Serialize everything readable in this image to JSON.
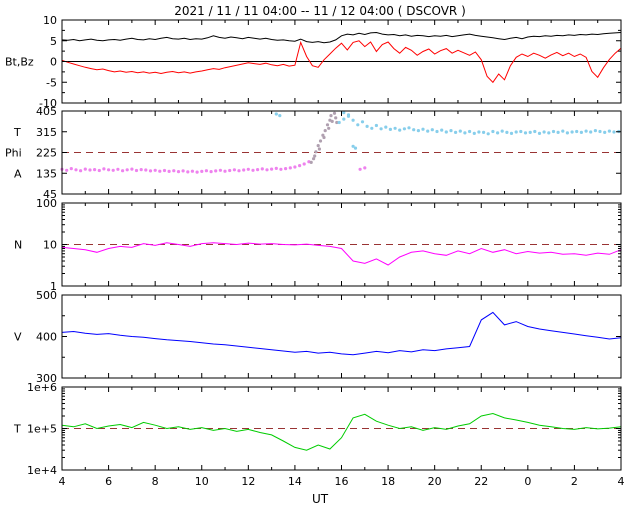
{
  "chart_data": {
    "type": "line",
    "title": "2021 / 11 / 11  04:00 -- 11 / 12  04:00 ( DSCOVR )",
    "xlabel": "UT",
    "x_range": [
      4,
      28
    ],
    "x_ticks": [
      4,
      6,
      8,
      10,
      12,
      14,
      16,
      18,
      20,
      22,
      24,
      26,
      28
    ],
    "x_tick_labels": [
      "4",
      "6",
      "8",
      "10",
      "12",
      "14",
      "16",
      "18",
      "20",
      "22",
      "0",
      "2",
      "4"
    ],
    "grid": false,
    "legend": "none",
    "refline_color": "#993333",
    "panels": [
      {
        "id": "bt-bz",
        "left_labels": [
          {
            "text": "Bt,Bz",
            "v": 0
          }
        ],
        "yscale": "linear",
        "ylim": [
          -10,
          10
        ],
        "yticks": [
          {
            "v": 10,
            "label": "10"
          },
          {
            "v": 5,
            "label": "5"
          },
          {
            "v": 0,
            "label": "0"
          },
          {
            "v": -5,
            "label": "-5"
          },
          {
            "v": -10,
            "label": "-10"
          }
        ],
        "yminor": [
          -7.5,
          -2.5,
          2.5,
          7.5
        ],
        "zero_line": true,
        "series": [
          {
            "name": "Bt",
            "type": "line",
            "color": "#000000",
            "y": [
              5.2,
              5.1,
              5.3,
              5.0,
              5.2,
              5.4,
              5.1,
              5.0,
              5.2,
              5.3,
              5.1,
              5.4,
              5.6,
              5.3,
              5.2,
              5.5,
              5.3,
              5.6,
              5.8,
              5.5,
              5.4,
              5.6,
              5.3,
              5.5,
              5.4,
              5.7,
              6.2,
              5.8,
              5.6,
              5.9,
              5.7,
              5.5,
              5.8,
              5.6,
              5.4,
              5.6,
              5.3,
              5.1,
              5.2,
              5.0,
              4.9,
              5.4,
              4.8,
              4.6,
              4.8,
              4.5,
              4.7,
              5.2,
              6.2,
              6.6,
              6.4,
              6.8,
              6.5,
              6.9,
              7.0,
              6.6,
              6.4,
              6.5,
              6.2,
              6.4,
              6.1,
              6.3,
              6.2,
              6.0,
              6.2,
              6.1,
              6.3,
              6.0,
              6.2,
              6.4,
              6.6,
              6.3,
              6.1,
              5.9,
              5.7,
              5.5,
              5.3,
              5.6,
              5.8,
              5.5,
              5.9,
              6.1,
              6.0,
              6.2,
              6.1,
              6.3,
              6.2,
              6.4,
              6.3,
              6.5,
              6.4,
              6.6,
              6.5,
              6.7,
              6.8,
              6.9,
              7.0
            ]
          },
          {
            "name": "Bz",
            "type": "line",
            "color": "#ff0000",
            "y": [
              0.3,
              -0.2,
              -0.6,
              -1.0,
              -1.4,
              -1.7,
              -2.0,
              -1.8,
              -2.2,
              -2.5,
              -2.3,
              -2.6,
              -2.4,
              -2.7,
              -2.5,
              -2.8,
              -2.6,
              -2.9,
              -2.6,
              -2.4,
              -2.7,
              -2.5,
              -2.8,
              -2.5,
              -2.3,
              -2.0,
              -1.7,
              -1.9,
              -1.5,
              -1.2,
              -0.9,
              -0.6,
              -0.3,
              -0.5,
              -0.7,
              -0.4,
              -0.8,
              -1.0,
              -0.7,
              -1.1,
              -0.9,
              4.6,
              1.2,
              -1.0,
              -1.4,
              0.4,
              1.8,
              3.2,
              4.4,
              2.8,
              4.6,
              5.0,
              3.6,
              4.7,
              2.4,
              4.1,
              4.7,
              3.1,
              2.0,
              3.4,
              2.7,
              1.5,
              2.4,
              3.0,
              1.8,
              2.6,
              3.1,
              2.0,
              2.7,
              2.1,
              1.5,
              2.3,
              0.4,
              -3.6,
              -5.0,
              -3.0,
              -4.4,
              -1.0,
              1.0,
              1.8,
              1.2,
              2.0,
              1.5,
              0.8,
              1.6,
              2.2,
              1.4,
              2.0,
              1.2,
              1.8,
              1.0,
              -2.4,
              -3.8,
              -1.5,
              0.5,
              2.0,
              3.2
            ]
          }
        ]
      },
      {
        "id": "phi",
        "left_labels": [
          {
            "text": "T",
            "v": 315
          },
          {
            "text": "Phi",
            "v": 225
          },
          {
            "text": "A",
            "v": 135
          }
        ],
        "yscale": "linear",
        "ylim": [
          45,
          405
        ],
        "yticks": [
          {
            "v": 405,
            "label": "405"
          },
          {
            "v": 315,
            "label": "315"
          },
          {
            "v": 225,
            "label": "225"
          },
          {
            "v": 135,
            "label": "135"
          },
          {
            "v": 45,
            "label": "45"
          }
        ],
        "refline": {
          "value": 225,
          "color": "#993333"
        },
        "series": [
          {
            "name": "phi-away",
            "type": "scatter",
            "color": "#ee82ee",
            "x_start": 4.0,
            "x_step": 0.2,
            "y": [
              152,
              148,
              155,
              150,
              146,
              153,
              149,
              151,
              147,
              154,
              150,
              148,
              152,
              146,
              150,
              153,
              147,
              151,
              149,
              145,
              148,
              144,
              147,
              143,
              146,
              142,
              145,
              141,
              144,
              140,
              143,
              146,
              142,
              145,
              148,
              144,
              147,
              150,
              146,
              149,
              152,
              148,
              151,
              154,
              150,
              153,
              156,
              152,
              155,
              158,
              162,
              168,
              175,
              185
            ]
          },
          {
            "name": "phi-transition",
            "type": "scatter",
            "color": "#b0a0b0",
            "x": [
              14.7,
              14.8,
              14.85,
              14.9,
              15.0,
              15.05,
              15.1,
              15.2,
              15.25,
              15.3,
              15.4,
              15.45,
              15.5,
              15.55,
              15.6,
              15.7,
              15.75,
              15.8
            ],
            "y": [
              182,
              198,
              210,
              228,
              255,
              240,
              275,
              300,
              290,
              320,
              345,
              330,
              365,
              385,
              360,
              395,
              375,
              355
            ]
          },
          {
            "name": "phi-toward",
            "type": "scatter",
            "color": "#87ceeb",
            "x_start": 15.9,
            "x_step": 0.2,
            "y": [
              355,
              370,
              382,
              365,
              345,
              358,
              338,
              330,
              342,
              328,
              335,
              325,
              330,
              322,
              328,
              332,
              324,
              320,
              326,
              318,
              324,
              316,
              322,
              314,
              320,
              312,
              318,
              310,
              316,
              308,
              314,
              312,
              306,
              316,
              310,
              318,
              312,
              308,
              314,
              316,
              310,
              312,
              316,
              308,
              314,
              310,
              316,
              312,
              318,
              310,
              314,
              316,
              312,
              318,
              314,
              320,
              316,
              312,
              318,
              314,
              316
            ]
          },
          {
            "name": "phi-toward-stray",
            "type": "scatter",
            "color": "#87ceeb",
            "x": [
              13.2,
              13.35,
              16.1,
              16.3,
              16.5,
              16.6
            ],
            "y": [
              392,
              385,
              398,
              388,
              252,
              244
            ]
          },
          {
            "name": "phi-away-stray",
            "type": "scatter",
            "color": "#ee82ee",
            "x": [
              16.8,
              17.0
            ],
            "y": [
              152,
              158
            ]
          }
        ]
      },
      {
        "id": "density",
        "left_labels": [
          {
            "text": "N",
            "v": 10
          }
        ],
        "yscale": "log",
        "ylim": [
          1,
          100
        ],
        "yticks": [
          {
            "v": 100,
            "label": "100"
          },
          {
            "v": 10,
            "label": "10"
          },
          {
            "v": 1,
            "label": "1"
          }
        ],
        "refline": {
          "value": 10,
          "color": "#993333"
        },
        "series": [
          {
            "name": "N",
            "type": "line",
            "color": "#ff00ff",
            "y": [
              8.5,
              8.0,
              7.5,
              6.5,
              8.0,
              9.0,
              8.5,
              10.5,
              9.5,
              11.0,
              10.0,
              9.0,
              10.5,
              11.0,
              10.5,
              10.0,
              10.8,
              10.2,
              10.5,
              10.0,
              9.8,
              10.2,
              9.5,
              9.0,
              8.0,
              4.0,
              3.5,
              4.5,
              3.2,
              5.0,
              6.5,
              7.0,
              6.0,
              5.5,
              7.0,
              6.0,
              8.0,
              6.5,
              7.5,
              6.0,
              6.8,
              6.2,
              6.5,
              5.8,
              6.0,
              5.5,
              6.2,
              5.8,
              7.5
            ]
          }
        ]
      },
      {
        "id": "speed",
        "left_labels": [
          {
            "text": "V",
            "v": 400
          }
        ],
        "yscale": "linear",
        "ylim": [
          300,
          500
        ],
        "yticks": [
          {
            "v": 500,
            "label": "500"
          },
          {
            "v": 400,
            "label": "400"
          },
          {
            "v": 300,
            "label": "300"
          }
        ],
        "yminor": [
          350,
          450
        ],
        "series": [
          {
            "name": "V",
            "type": "line",
            "color": "#0000ff",
            "y": [
              410,
              412,
              408,
              405,
              407,
              403,
              400,
              398,
              395,
              392,
              390,
              388,
              385,
              382,
              380,
              377,
              374,
              371,
              368,
              365,
              362,
              364,
              360,
              362,
              358,
              356,
              360,
              364,
              361,
              366,
              363,
              368,
              366,
              370,
              373,
              376,
              440,
              458,
              428,
              436,
              424,
              418,
              414,
              410,
              406,
              402,
              398,
              394,
              397
            ]
          }
        ]
      },
      {
        "id": "temperature",
        "left_labels": [
          {
            "text": "T",
            "v": 100000
          }
        ],
        "yscale": "log",
        "ylim": [
          10000,
          1000000
        ],
        "yticks": [
          {
            "v": 1000000,
            "label": "1e+6"
          },
          {
            "v": 100000,
            "label": "1e+5"
          },
          {
            "v": 10000,
            "label": "1e+4"
          }
        ],
        "refline": {
          "value": 100000,
          "color": "#993333"
        },
        "series": [
          {
            "name": "T",
            "type": "line",
            "color": "#00cc00",
            "y": [
              120000,
              110000,
              130000,
              100000,
              115000,
              125000,
              105000,
              140000,
              120000,
              100000,
              110000,
              95000,
              105000,
              90000,
              100000,
              85000,
              95000,
              80000,
              70000,
              50000,
              35000,
              30000,
              40000,
              32000,
              60000,
              180000,
              220000,
              150000,
              120000,
              100000,
              110000,
              90000,
              105000,
              95000,
              115000,
              130000,
              200000,
              230000,
              180000,
              160000,
              140000,
              120000,
              110000,
              100000,
              95000,
              105000,
              98000,
              102000,
              110000
            ]
          }
        ]
      }
    ]
  }
}
